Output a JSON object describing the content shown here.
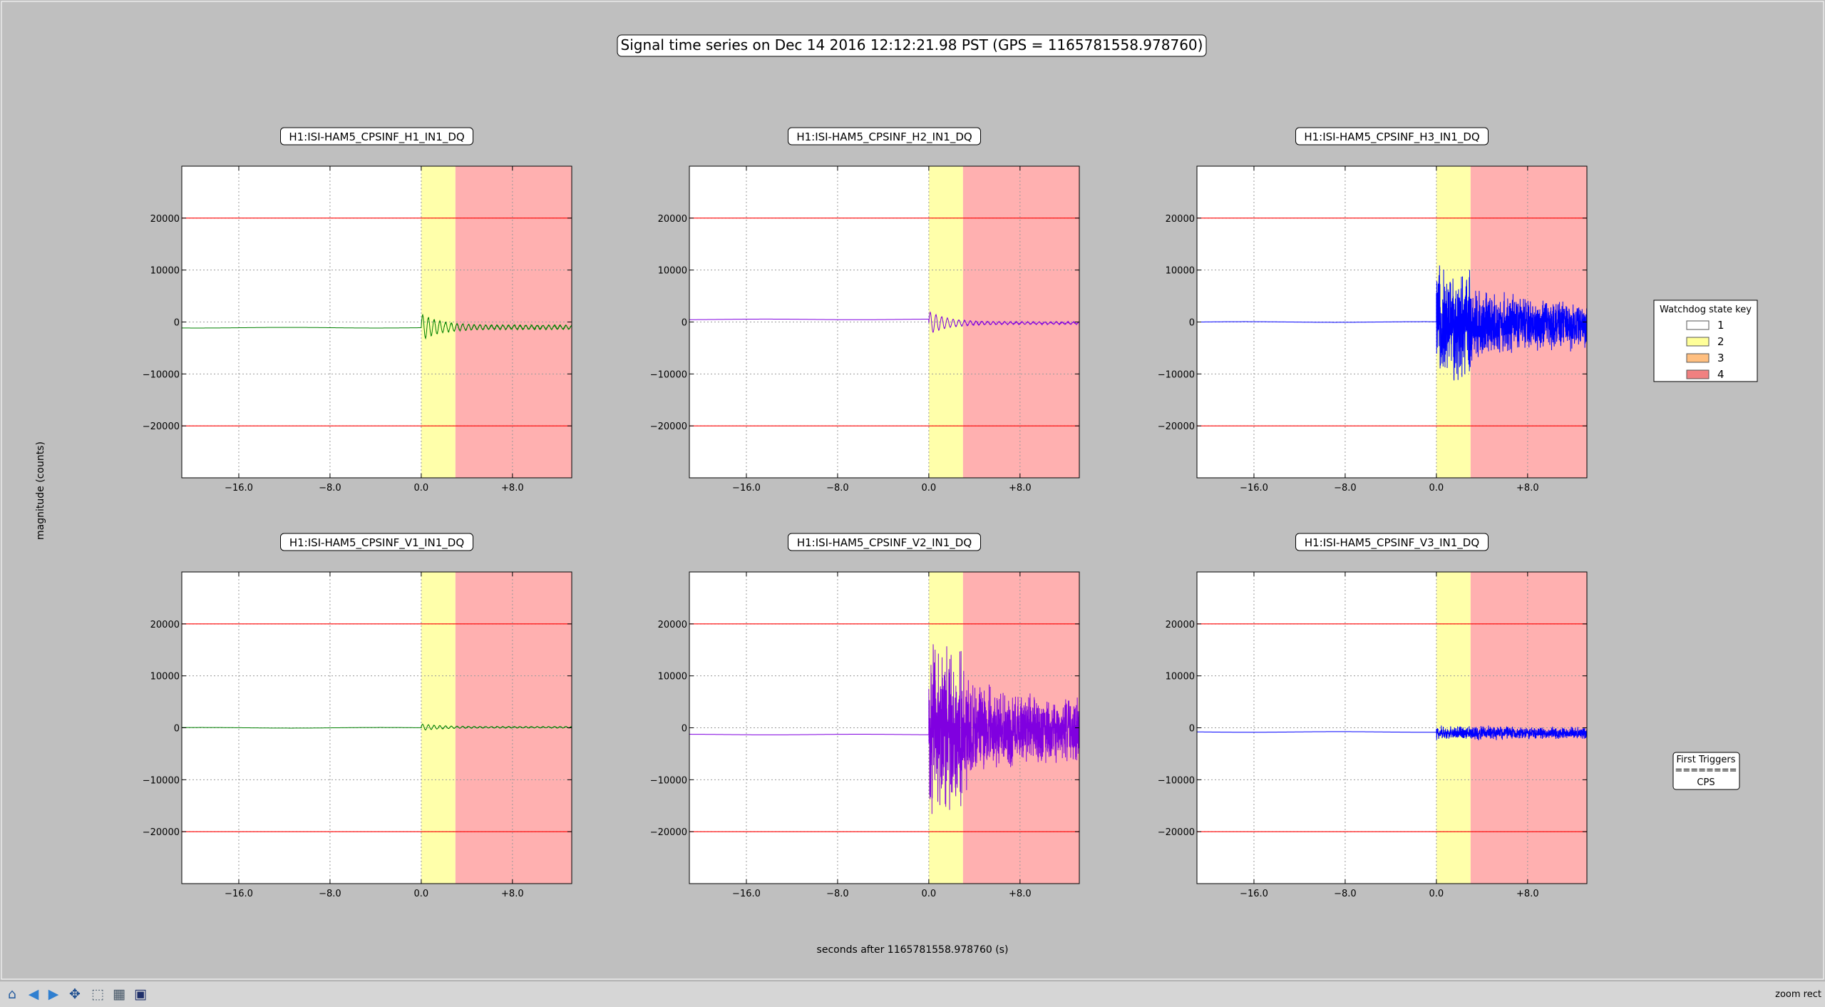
{
  "figure": {
    "suptitle": "Signal time series on Dec 14 2016 12:12:21.98 PST (GPS = 1165781558.978760)",
    "ylabel": "magnitude (counts)",
    "xlabel": "seconds after 1165781558.978760 (s)"
  },
  "legend": {
    "title": "Watchdog state key",
    "entries": [
      {
        "label": "1",
        "color": "#ffffff"
      },
      {
        "label": "2",
        "color": "#ffff99"
      },
      {
        "label": "3",
        "color": "#ffbf80"
      },
      {
        "label": "4",
        "color": "#f08080"
      }
    ]
  },
  "first_triggers": {
    "title": "First Triggers",
    "separator": "========",
    "value": "CPS"
  },
  "toolbar": {
    "status": "zoom rect",
    "buttons": [
      {
        "name": "home-icon",
        "glyph": "⌂",
        "color": "#2a5fa0"
      },
      {
        "name": "back-icon",
        "glyph": "◀",
        "color": "#2f7fd0"
      },
      {
        "name": "forward-icon",
        "glyph": "▶",
        "color": "#2f7fd0"
      },
      {
        "name": "pan-icon",
        "glyph": "✥",
        "color": "#1f4f8f"
      },
      {
        "name": "zoom-icon",
        "glyph": "⬚",
        "color": "#556677"
      },
      {
        "name": "subplots-icon",
        "glyph": "▦",
        "color": "#445566"
      },
      {
        "name": "save-icon",
        "glyph": "▣",
        "color": "#20306a"
      }
    ]
  },
  "chart_data": [
    {
      "type": "line",
      "title": "H1:ISI-HAM5_CPSINF_H1_IN1_DQ",
      "xlim": [
        -21,
        13.2
      ],
      "ylim": [
        -30000,
        30000
      ],
      "xticks": [
        -16,
        -8,
        0,
        8
      ],
      "xtick_labels": [
        "−16.0",
        "−8.0",
        "0.0",
        "+8.0"
      ],
      "yticks": [
        -20000,
        -10000,
        0,
        10000,
        20000
      ],
      "ytick_labels": [
        "−20000",
        "−10000",
        "0",
        "10000",
        "20000"
      ],
      "grid": true,
      "threshold_lines": [
        20000,
        -20000
      ],
      "threshold_color": "#ff0000",
      "state_spans": [
        {
          "state": 2,
          "x0": 0,
          "x1": 3
        },
        {
          "state": 4,
          "x0": 3,
          "x1": 13.2
        }
      ],
      "series": [
        {
          "color": "#008000",
          "pre_level": -1100,
          "post_level": -1000,
          "burst_amplitude": 2200,
          "noise_amplitude": 350,
          "envelope": "decaying"
        }
      ]
    },
    {
      "type": "line",
      "title": "H1:ISI-HAM5_CPSINF_H2_IN1_DQ",
      "xlim": [
        -21,
        13.2
      ],
      "ylim": [
        -30000,
        30000
      ],
      "xticks": [
        -16,
        -8,
        0,
        8
      ],
      "xtick_labels": [
        "−16.0",
        "−8.0",
        "0.0",
        "+8.0"
      ],
      "yticks": [
        -20000,
        -10000,
        0,
        10000,
        20000
      ],
      "ytick_labels": [
        "−20000",
        "−10000",
        "0",
        "10000",
        "20000"
      ],
      "grid": true,
      "threshold_lines": [
        20000,
        -20000
      ],
      "threshold_color": "#ff0000",
      "state_spans": [
        {
          "state": 2,
          "x0": 0,
          "x1": 3
        },
        {
          "state": 4,
          "x0": 3,
          "x1": 13.2
        }
      ],
      "series": [
        {
          "color": "#8000e0",
          "pre_level": 500,
          "post_level": -200,
          "burst_amplitude": 2000,
          "noise_amplitude": 200,
          "envelope": "decaying"
        }
      ]
    },
    {
      "type": "line",
      "title": "H1:ISI-HAM5_CPSINF_H3_IN1_DQ",
      "xlim": [
        -21,
        13.2
      ],
      "ylim": [
        -30000,
        30000
      ],
      "xticks": [
        -16,
        -8,
        0,
        8
      ],
      "xtick_labels": [
        "−16.0",
        "−8.0",
        "0.0",
        "+8.0"
      ],
      "yticks": [
        -20000,
        -10000,
        0,
        10000,
        20000
      ],
      "ytick_labels": [
        "−20000",
        "−10000",
        "0",
        "10000",
        "20000"
      ],
      "grid": true,
      "threshold_lines": [
        20000,
        -20000
      ],
      "threshold_color": "#ff0000",
      "state_spans": [
        {
          "state": 2,
          "x0": 0,
          "x1": 3
        },
        {
          "state": 4,
          "x0": 3,
          "x1": 13.2
        }
      ],
      "series": [
        {
          "color": "#0000ff",
          "pre_level": 0,
          "post_level": -500,
          "burst_amplitude": 12000,
          "noise_amplitude": 5000,
          "envelope": "noisy"
        }
      ]
    },
    {
      "type": "line",
      "title": "H1:ISI-HAM5_CPSINF_V1_IN1_DQ",
      "xlim": [
        -21,
        13.2
      ],
      "ylim": [
        -30000,
        30000
      ],
      "xticks": [
        -16,
        -8,
        0,
        8
      ],
      "xtick_labels": [
        "−16.0",
        "−8.0",
        "0.0",
        "+8.0"
      ],
      "yticks": [
        -20000,
        -10000,
        0,
        10000,
        20000
      ],
      "ytick_labels": [
        "−20000",
        "−10000",
        "0",
        "10000",
        "20000"
      ],
      "grid": true,
      "threshold_lines": [
        20000,
        -20000
      ],
      "threshold_color": "#ff0000",
      "state_spans": [
        {
          "state": 2,
          "x0": 0,
          "x1": 3
        },
        {
          "state": 4,
          "x0": 3,
          "x1": 13.2
        }
      ],
      "series": [
        {
          "color": "#008000",
          "pre_level": 0,
          "post_level": 100,
          "burst_amplitude": 500,
          "noise_amplitude": 120,
          "envelope": "decaying"
        }
      ]
    },
    {
      "type": "line",
      "title": "H1:ISI-HAM5_CPSINF_V2_IN1_DQ",
      "xlim": [
        -21,
        13.2
      ],
      "ylim": [
        -30000,
        30000
      ],
      "xticks": [
        -16,
        -8,
        0,
        8
      ],
      "xtick_labels": [
        "−16.0",
        "−8.0",
        "0.0",
        "+8.0"
      ],
      "yticks": [
        -20000,
        -10000,
        0,
        10000,
        20000
      ],
      "ytick_labels": [
        "−20000",
        "−10000",
        "0",
        "10000",
        "20000"
      ],
      "grid": true,
      "threshold_lines": [
        20000,
        -20000
      ],
      "threshold_color": "#ff0000",
      "state_spans": [
        {
          "state": 2,
          "x0": 0,
          "x1": 3
        },
        {
          "state": 4,
          "x0": 3,
          "x1": 13.2
        }
      ],
      "series": [
        {
          "color": "#8000e0",
          "pre_level": -1300,
          "post_level": -500,
          "burst_amplitude": 18000,
          "noise_amplitude": 6500,
          "envelope": "noisy"
        }
      ]
    },
    {
      "type": "line",
      "title": "H1:ISI-HAM5_CPSINF_V3_IN1_DQ",
      "xlim": [
        -21,
        13.2
      ],
      "ylim": [
        -30000,
        30000
      ],
      "xticks": [
        -16,
        -8,
        0,
        8
      ],
      "xtick_labels": [
        "−16.0",
        "−8.0",
        "0.0",
        "+8.0"
      ],
      "yticks": [
        -20000,
        -10000,
        0,
        10000,
        20000
      ],
      "ytick_labels": [
        "−20000",
        "−10000",
        "0",
        "10000",
        "20000"
      ],
      "grid": true,
      "threshold_lines": [
        20000,
        -20000
      ],
      "threshold_color": "#ff0000",
      "state_spans": [
        {
          "state": 2,
          "x0": 0,
          "x1": 3
        },
        {
          "state": 4,
          "x0": 3,
          "x1": 13.2
        }
      ],
      "series": [
        {
          "color": "#0000ff",
          "pre_level": -800,
          "post_level": -1000,
          "burst_amplitude": 1500,
          "noise_amplitude": 1200,
          "envelope": "noisy"
        }
      ]
    }
  ]
}
